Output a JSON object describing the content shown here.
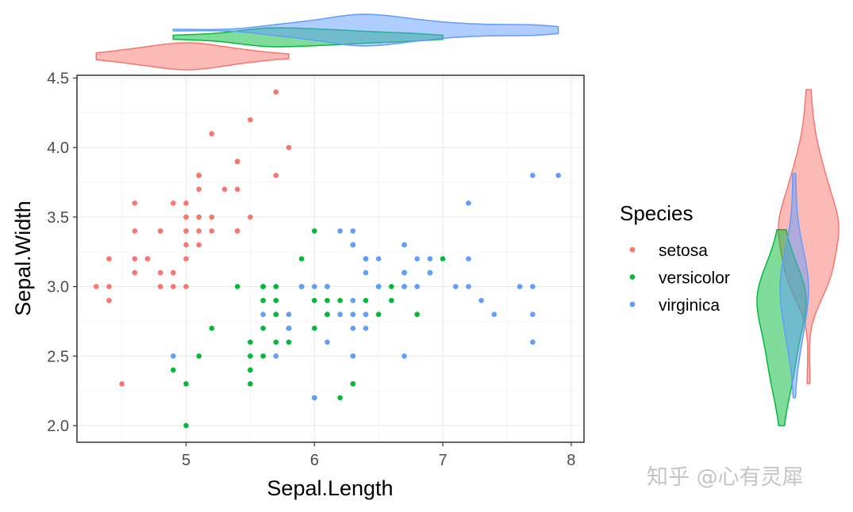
{
  "watermark": "知乎 @心有灵犀",
  "chart_data": {
    "type": "scatter",
    "xlabel": "Sepal.Length",
    "ylabel": "Sepal.Width",
    "xlim": [
      4.15,
      8.1
    ],
    "ylim": [
      1.88,
      4.52
    ],
    "xticks": [
      5,
      6,
      7,
      8
    ],
    "yticks": [
      2.0,
      2.5,
      3.0,
      3.5,
      4.0,
      4.5
    ],
    "xtick_labels": [
      "5",
      "6",
      "7",
      "8"
    ],
    "ytick_labels": [
      "2.0",
      "2.5",
      "3.0",
      "3.5",
      "4.0",
      "4.5"
    ],
    "grid": true,
    "legend": {
      "title": "Species",
      "position": "right"
    },
    "series": [
      {
        "name": "setosa",
        "color": "#F8766D",
        "points": [
          [
            5.1,
            3.5
          ],
          [
            4.9,
            3.0
          ],
          [
            4.7,
            3.2
          ],
          [
            4.6,
            3.1
          ],
          [
            5.0,
            3.6
          ],
          [
            5.4,
            3.9
          ],
          [
            4.6,
            3.4
          ],
          [
            5.0,
            3.4
          ],
          [
            4.4,
            2.9
          ],
          [
            4.9,
            3.1
          ],
          [
            5.4,
            3.7
          ],
          [
            4.8,
            3.4
          ],
          [
            4.8,
            3.0
          ],
          [
            4.3,
            3.0
          ],
          [
            5.8,
            4.0
          ],
          [
            5.7,
            4.4
          ],
          [
            5.4,
            3.9
          ],
          [
            5.1,
            3.5
          ],
          [
            5.7,
            3.8
          ],
          [
            5.1,
            3.8
          ],
          [
            5.4,
            3.4
          ],
          [
            5.1,
            3.7
          ],
          [
            4.6,
            3.6
          ],
          [
            5.1,
            3.3
          ],
          [
            4.8,
            3.4
          ],
          [
            5.0,
            3.0
          ],
          [
            5.0,
            3.4
          ],
          [
            5.2,
            3.5
          ],
          [
            5.2,
            3.4
          ],
          [
            4.7,
            3.2
          ],
          [
            4.8,
            3.1
          ],
          [
            5.4,
            3.4
          ],
          [
            5.2,
            4.1
          ],
          [
            5.5,
            4.2
          ],
          [
            4.9,
            3.1
          ],
          [
            5.0,
            3.2
          ],
          [
            5.5,
            3.5
          ],
          [
            4.9,
            3.6
          ],
          [
            4.4,
            3.0
          ],
          [
            5.1,
            3.4
          ],
          [
            5.0,
            3.5
          ],
          [
            4.5,
            2.3
          ],
          [
            4.4,
            3.2
          ],
          [
            5.0,
            3.5
          ],
          [
            5.1,
            3.8
          ],
          [
            4.8,
            3.0
          ],
          [
            5.1,
            3.8
          ],
          [
            4.6,
            3.2
          ],
          [
            5.3,
            3.7
          ],
          [
            5.0,
            3.3
          ]
        ]
      },
      {
        "name": "versicolor",
        "color": "#00BA38",
        "points": [
          [
            7.0,
            3.2
          ],
          [
            6.4,
            3.2
          ],
          [
            6.9,
            3.1
          ],
          [
            5.5,
            2.3
          ],
          [
            6.5,
            2.8
          ],
          [
            5.7,
            2.8
          ],
          [
            6.3,
            3.3
          ],
          [
            4.9,
            2.4
          ],
          [
            6.6,
            2.9
          ],
          [
            5.2,
            2.7
          ],
          [
            5.0,
            2.0
          ],
          [
            5.9,
            3.0
          ],
          [
            6.0,
            2.2
          ],
          [
            6.1,
            2.9
          ],
          [
            5.6,
            2.9
          ],
          [
            6.7,
            3.1
          ],
          [
            5.6,
            3.0
          ],
          [
            5.8,
            2.7
          ],
          [
            6.2,
            2.2
          ],
          [
            5.6,
            2.5
          ],
          [
            5.9,
            3.2
          ],
          [
            6.1,
            2.8
          ],
          [
            6.3,
            2.5
          ],
          [
            6.1,
            2.8
          ],
          [
            6.4,
            2.9
          ],
          [
            6.6,
            3.0
          ],
          [
            6.8,
            2.8
          ],
          [
            6.7,
            3.0
          ],
          [
            6.0,
            2.9
          ],
          [
            5.7,
            2.6
          ],
          [
            5.5,
            2.4
          ],
          [
            5.5,
            2.4
          ],
          [
            5.8,
            2.7
          ],
          [
            6.0,
            2.7
          ],
          [
            5.4,
            3.0
          ],
          [
            6.0,
            3.4
          ],
          [
            6.7,
            3.1
          ],
          [
            6.3,
            2.3
          ],
          [
            5.6,
            3.0
          ],
          [
            5.5,
            2.5
          ],
          [
            5.5,
            2.6
          ],
          [
            6.1,
            3.0
          ],
          [
            5.8,
            2.6
          ],
          [
            5.0,
            2.3
          ],
          [
            5.6,
            2.7
          ],
          [
            5.7,
            3.0
          ],
          [
            5.7,
            2.9
          ],
          [
            6.2,
            2.9
          ],
          [
            5.1,
            2.5
          ],
          [
            5.7,
            2.8
          ]
        ]
      },
      {
        "name": "virginica",
        "color": "#619CFF",
        "points": [
          [
            6.3,
            3.3
          ],
          [
            5.8,
            2.7
          ],
          [
            7.1,
            3.0
          ],
          [
            6.3,
            2.9
          ],
          [
            6.5,
            3.0
          ],
          [
            7.6,
            3.0
          ],
          [
            4.9,
            2.5
          ],
          [
            7.3,
            2.9
          ],
          [
            6.7,
            2.5
          ],
          [
            7.2,
            3.6
          ],
          [
            6.5,
            3.2
          ],
          [
            6.4,
            2.7
          ],
          [
            6.8,
            3.0
          ],
          [
            5.7,
            2.5
          ],
          [
            5.8,
            2.8
          ],
          [
            6.4,
            3.2
          ],
          [
            6.5,
            3.0
          ],
          [
            7.7,
            3.8
          ],
          [
            7.7,
            2.6
          ],
          [
            6.0,
            2.2
          ],
          [
            6.9,
            3.2
          ],
          [
            5.6,
            2.8
          ],
          [
            7.7,
            2.8
          ],
          [
            6.3,
            2.7
          ],
          [
            6.7,
            3.3
          ],
          [
            7.2,
            3.2
          ],
          [
            6.2,
            2.8
          ],
          [
            6.1,
            3.0
          ],
          [
            6.4,
            2.8
          ],
          [
            7.2,
            3.0
          ],
          [
            7.4,
            2.8
          ],
          [
            7.9,
            3.8
          ],
          [
            6.4,
            2.8
          ],
          [
            6.3,
            2.8
          ],
          [
            6.1,
            2.6
          ],
          [
            7.7,
            3.0
          ],
          [
            6.3,
            3.4
          ],
          [
            6.4,
            3.1
          ],
          [
            6.0,
            3.0
          ],
          [
            6.9,
            3.1
          ],
          [
            6.7,
            3.1
          ],
          [
            6.9,
            3.1
          ],
          [
            5.8,
            2.7
          ],
          [
            6.8,
            3.2
          ],
          [
            6.7,
            3.3
          ],
          [
            6.7,
            3.0
          ],
          [
            6.3,
            2.5
          ],
          [
            6.5,
            3.0
          ],
          [
            6.2,
            3.4
          ],
          [
            5.9,
            3.0
          ]
        ]
      }
    ],
    "marginal_x": {
      "type": "violin",
      "variable": "Sepal.Length",
      "series": [
        {
          "name": "setosa",
          "color": "#F8766D",
          "range": [
            4.3,
            5.8
          ],
          "peak": 5.0
        },
        {
          "name": "versicolor",
          "color": "#00BA38",
          "range": [
            4.9,
            7.0
          ],
          "peak": 5.6
        },
        {
          "name": "virginica",
          "color": "#619CFF",
          "range": [
            4.9,
            7.9
          ],
          "peak": 6.4
        }
      ]
    },
    "marginal_y": {
      "type": "violin",
      "variable": "Sepal.Width",
      "series": [
        {
          "name": "setosa",
          "color": "#F8766D",
          "range": [
            2.3,
            4.4
          ],
          "peak": 3.4
        },
        {
          "name": "versicolor",
          "color": "#00BA38",
          "range": [
            2.0,
            3.4
          ],
          "peak": 2.8
        },
        {
          "name": "virginica",
          "color": "#619CFF",
          "range": [
            2.2,
            3.8
          ],
          "peak": 3.0
        }
      ]
    }
  }
}
